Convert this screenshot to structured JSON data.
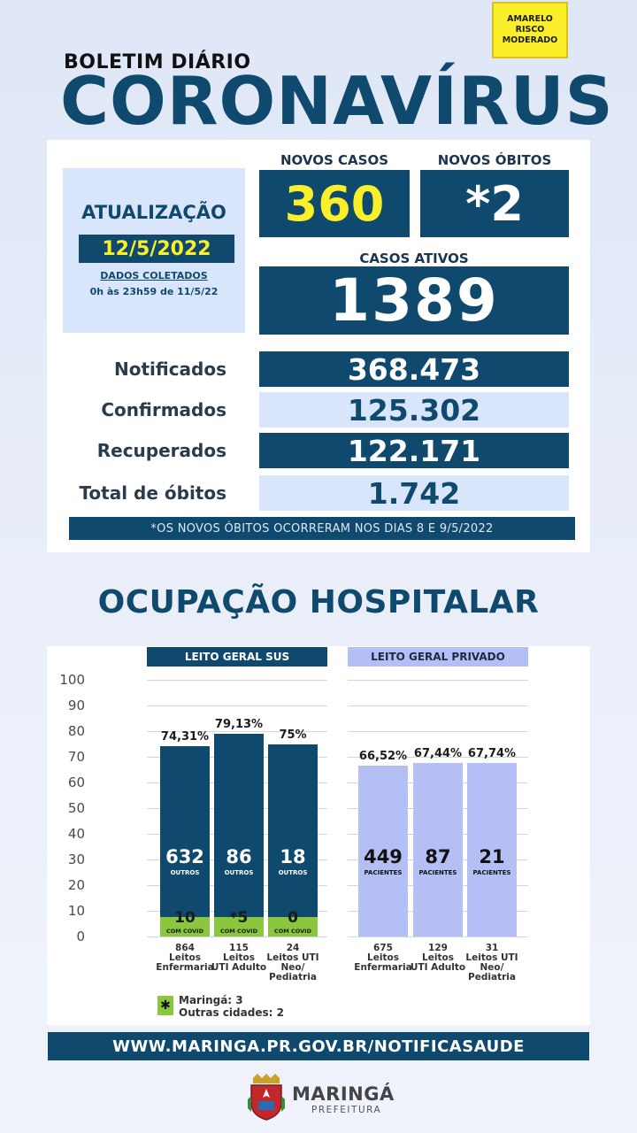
{
  "risk_badge": {
    "line1": "AMARELO",
    "line2": "RISCO",
    "line3": "MODERADO",
    "color": "#fbef2a"
  },
  "header": {
    "bulletin_label": "BOLETIM DIÁRIO",
    "title": "CORONAVÍRUS"
  },
  "update": {
    "title": "ATUALIZAÇÃO",
    "date": "12/5/2022",
    "collected_label": "DADOS COLETADOS",
    "collected_range": "0h às 23h59 de 11/5/22"
  },
  "summary": {
    "new_cases_label": "NOVOS CASOS",
    "new_cases": "360",
    "new_deaths_label": "NOVOS ÓBITOS",
    "new_deaths": "*2",
    "active_label": "CASOS ATIVOS",
    "active": "1389"
  },
  "totals": [
    {
      "label": "Notificados",
      "value": "368.473"
    },
    {
      "label": "Confirmados",
      "value": "125.302"
    },
    {
      "label": "Recuperados",
      "value": "122.171"
    },
    {
      "label": "Total de óbitos",
      "value": "1.742"
    }
  ],
  "footnote": "*OS NOVOS ÓBITOS OCORRERAM NOS DIAS 8 E 9/5/2022",
  "hospital": {
    "title": "OCUPAÇÃO HOSPITALAR",
    "sus_header": "LEITO GERAL SUS",
    "private_header": "LEITO GERAL PRIVADO",
    "legend_symbol": "✱",
    "legend_line1": "Maringá: 3",
    "legend_line2": "Outras cidades: 2"
  },
  "chart_data": {
    "type": "bar",
    "ylim": [
      0,
      100
    ],
    "yticks": [
      "100",
      "90",
      "80",
      "70",
      "60",
      "50",
      "40",
      "30",
      "20",
      "10",
      "0"
    ],
    "grid": true,
    "groups": [
      {
        "name": "LEITO GERAL SUS",
        "color": "#0f4a6e",
        "covid_color": "#8bc63f",
        "bars": [
          {
            "occupancy": 74.31,
            "pct_label": "74,31%",
            "others": "632",
            "others_label": "OUTROS",
            "covid": "10",
            "covid_label": "COM COVID",
            "covid_share": 0.0116,
            "beds": "864",
            "bed_line1": "Leitos",
            "bed_line2": "Enfermaria",
            "bed_line3": ""
          },
          {
            "occupancy": 79.13,
            "pct_label": "79,13%",
            "others": "86",
            "others_label": "OUTROS",
            "covid": "*5",
            "covid_label": "COM COVID",
            "covid_share": 0.0435,
            "beds": "115",
            "bed_line1": "Leitos",
            "bed_line2": "UTI Adulto",
            "bed_line3": ""
          },
          {
            "occupancy": 75,
            "pct_label": "75%",
            "others": "18",
            "others_label": "OUTROS",
            "covid": "0",
            "covid_label": "COM COVID",
            "covid_share": 0,
            "beds": "24",
            "bed_line1": "Leitos UTI",
            "bed_line2": "Neo/",
            "bed_line3": "Pediatria"
          }
        ]
      },
      {
        "name": "LEITO GERAL PRIVADO",
        "color": "#b4bff5",
        "bars": [
          {
            "occupancy": 66.52,
            "pct_label": "66,52%",
            "patients": "449",
            "patients_label": "PACIENTES",
            "beds": "675",
            "bed_line1": "Leitos",
            "bed_line2": "Enfermaria",
            "bed_line3": ""
          },
          {
            "occupancy": 67.44,
            "pct_label": "67,44%",
            "patients": "87",
            "patients_label": "PACIENTES",
            "beds": "129",
            "bed_line1": "Leitos",
            "bed_line2": "UTI Adulto",
            "bed_line3": ""
          },
          {
            "occupancy": 67.74,
            "pct_label": "67,74%",
            "patients": "21",
            "patients_label": "PACIENTES",
            "beds": "31",
            "bed_line1": "Leitos UTI",
            "bed_line2": "Neo/",
            "bed_line3": "Pediatria"
          }
        ]
      }
    ]
  },
  "footer": {
    "url": "WWW.MARINGA.PR.GOV.BR/NOTIFICASAUDE",
    "city": "MARINGÁ",
    "city_sub": "PREFEITURA",
    "crest_icon": "city-crest-icon"
  }
}
